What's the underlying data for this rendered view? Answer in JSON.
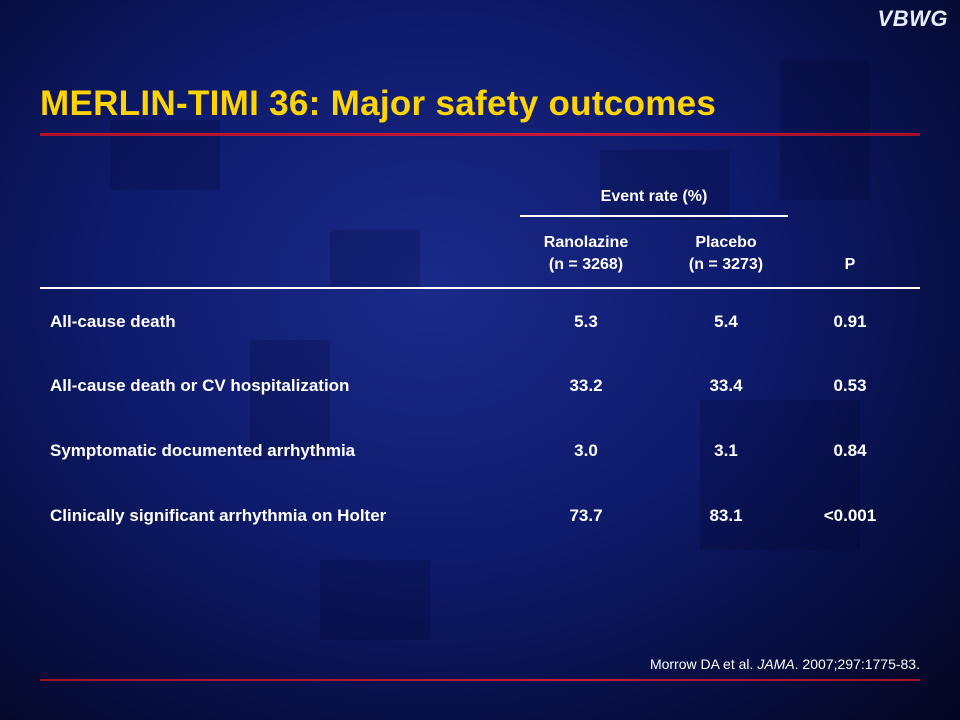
{
  "logo": "VBWG",
  "title": "MERLIN-TIMI 36: Major safety outcomes",
  "table": {
    "group_header": "Event rate (%)",
    "columns": {
      "ranolazine_line1": "Ranolazine",
      "ranolazine_line2": "(n = 3268)",
      "placebo_line1": "Placebo",
      "placebo_line2": "(n = 3273)",
      "p": "P"
    },
    "rows": [
      {
        "label": "All-cause death",
        "ranolazine": "5.3",
        "placebo": "5.4",
        "p": "0.91"
      },
      {
        "label": "All-cause death or CV hospitalization",
        "ranolazine": "33.2",
        "placebo": "33.4",
        "p": "0.53"
      },
      {
        "label": "Symptomatic documented arrhythmia",
        "ranolazine": "3.0",
        "placebo": "3.1",
        "p": "0.84"
      },
      {
        "label": "Clinically significant arrhythmia on Holter",
        "ranolazine": "73.7",
        "placebo": "83.1",
        "p": "<0.001"
      }
    ]
  },
  "reference": {
    "authors": "Morrow DA et al. ",
    "journal": "JAMA",
    "details": ". 2007;297:1775-83."
  },
  "colors": {
    "title": "#ffd400",
    "rule": "#c8183a",
    "background": "#0e1a6a"
  }
}
